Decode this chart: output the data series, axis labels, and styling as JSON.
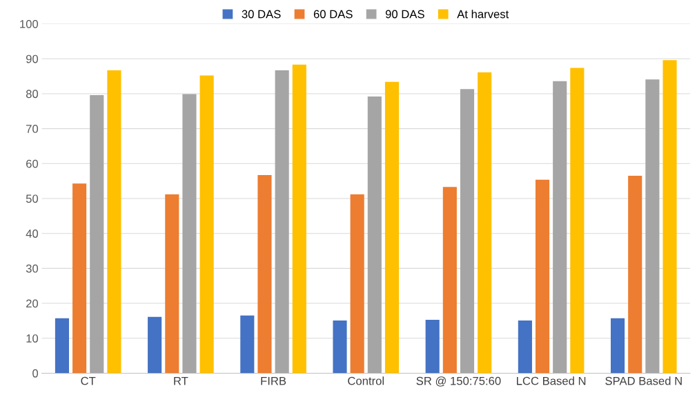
{
  "chart_data": {
    "type": "bar",
    "categories": [
      "CT",
      "RT",
      "FIRB",
      "Control",
      "SR @ 150:75:60",
      "LCC Based N",
      "SPAD Based N"
    ],
    "series": [
      {
        "name": "30 DAS",
        "color": "#4472c4",
        "values": [
          15.7,
          16.1,
          16.5,
          15.1,
          15.3,
          15.1,
          15.7
        ]
      },
      {
        "name": "60 DAS",
        "color": "#ed7d31",
        "values": [
          54.3,
          51.2,
          56.7,
          51.2,
          53.3,
          55.4,
          56.5
        ]
      },
      {
        "name": "90 DAS",
        "color": "#a5a5a5",
        "values": [
          79.6,
          79.9,
          86.7,
          79.2,
          81.3,
          83.6,
          84.1
        ]
      },
      {
        "name": "At harvest",
        "color": "#ffc000",
        "values": [
          86.7,
          85.2,
          88.3,
          83.4,
          86.1,
          87.4,
          89.6
        ]
      }
    ],
    "ylim": [
      0,
      100
    ],
    "yticks": [
      0,
      10,
      20,
      30,
      40,
      50,
      60,
      70,
      80,
      90,
      100
    ],
    "grid": "y",
    "legend": "top"
  }
}
